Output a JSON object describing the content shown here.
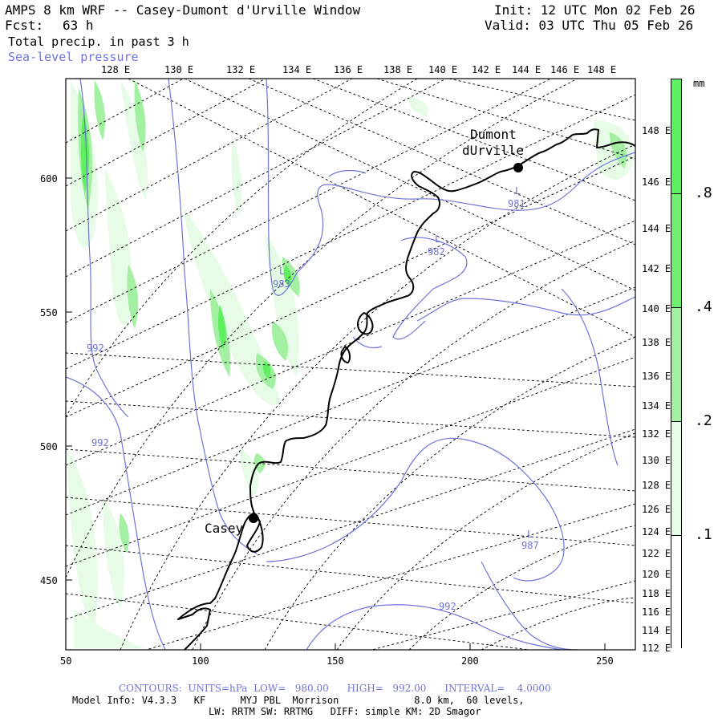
{
  "header": {
    "title": "AMPS 8 km WRF -- Casey-Dumont d'Urville Window",
    "fcst_label": "Fcst:",
    "fcst_value": "63 h",
    "field_precip": "Total precip. in past 3 h",
    "field_slp": "Sea-level pressure",
    "init": "Init: 12 UTC Mon 02 Feb 26",
    "valid": "Valid: 03 UTC Thu 05 Feb 26"
  },
  "top_axis_labels": [
    "128 E",
    "130 E",
    "132 E",
    "134 E",
    "136 E",
    "138 E",
    "140 E",
    "142 E",
    "144 E",
    "146 E",
    "148 E"
  ],
  "right_axis_labels": [
    "148 E",
    "146 E",
    "144 E",
    "142 E",
    "140 E",
    "138 E",
    "136 E",
    "134 E",
    "132 E",
    "130 E",
    "128 E",
    "126 E",
    "124 E",
    "122 E",
    "120 E",
    "118 E",
    "116 E",
    "114 E",
    "112 E"
  ],
  "left_axis_labels": [
    "600",
    "550",
    "500",
    "450"
  ],
  "bottom_axis_labels": [
    "50",
    "100",
    "150",
    "200",
    "250"
  ],
  "stations": [
    {
      "name": "Dumont",
      "name2": "dUrville"
    },
    {
      "name": "Casey"
    }
  ],
  "pressure_labels": {
    "l1": "L",
    "v1": "981",
    "l2": "L",
    "v2": "982",
    "l3": "L",
    "v3": "983",
    "v4": "992",
    "v5": "992",
    "l6": "L",
    "v6": "987",
    "v7": "992"
  },
  "colorbar": {
    "unit": "mm",
    "levels": [
      ".8",
      ".4",
      ".2",
      ".1"
    ],
    "colors": [
      "#5ef05e",
      "#a3f0a3",
      "#e6fce6",
      "#ffffff"
    ]
  },
  "footer": {
    "contours": "CONTOURS:  UNITS=hPa  LOW=   980.00      HIGH=   992.00      INTERVAL=    4.0000",
    "model_info": "Model Info: V4.3.3   KF      MYJ PBL  Morrison             8.0 km,  60 levels,",
    "physics": "LW: RRTM SW: RRTMG   DIFF: simple KM: 2D Smagor"
  },
  "colors": {
    "contour": "#6f74d8",
    "coast": "#000000",
    "grid": "#000000"
  }
}
